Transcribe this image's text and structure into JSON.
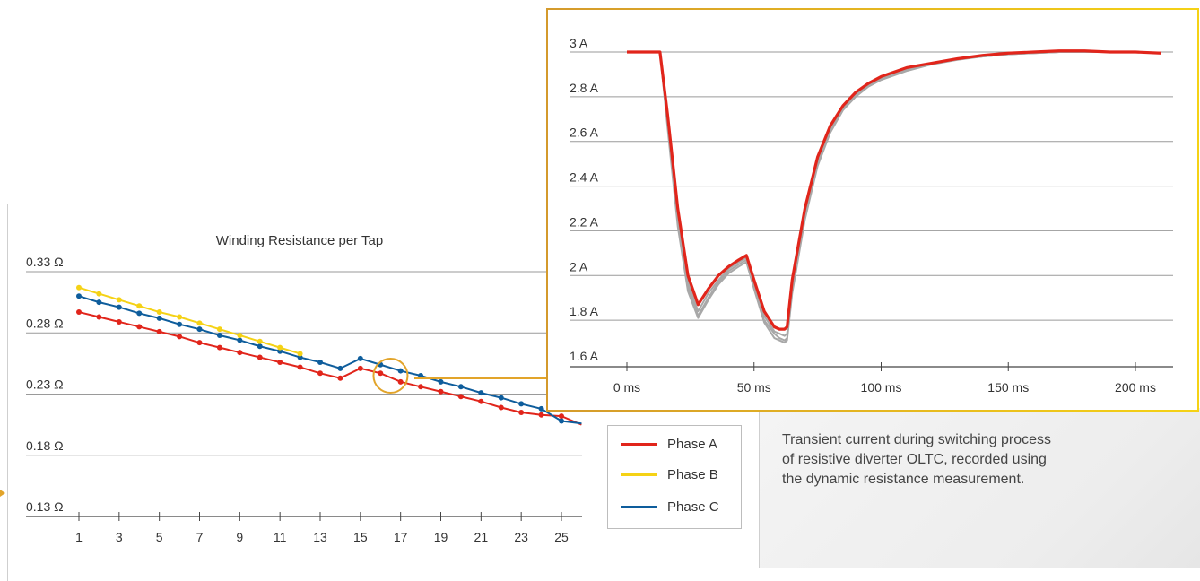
{
  "caption": "Transient current during switching process of resistive diverter OLTC, recorded using the dynamic resistance measurement.",
  "colors": {
    "phase_a": "#e1251b",
    "phase_b": "#f5d215",
    "phase_c": "#0e5d9c",
    "highlight": "#e2a42a",
    "grid": "#9a9a9a",
    "gray_traces": "#a8a8a8"
  },
  "chart_data": [
    {
      "type": "line",
      "title": "Winding Resistance per Tap",
      "xlabel": "",
      "ylabel": "",
      "x": [
        1,
        2,
        3,
        4,
        5,
        6,
        7,
        8,
        9,
        10,
        11,
        12,
        13,
        14,
        15,
        16,
        17,
        18,
        19,
        20,
        21,
        22,
        23,
        24,
        25,
        26
      ],
      "xticks": [
        "1",
        "3",
        "5",
        "7",
        "9",
        "11",
        "13",
        "15",
        "17",
        "19",
        "21",
        "23",
        "25"
      ],
      "yticks": [
        "0.33 Ω",
        "0.28 Ω",
        "0.23 Ω",
        "0.18 Ω",
        "0.13 Ω"
      ],
      "ytick_values": [
        0.33,
        0.28,
        0.23,
        0.18,
        0.13
      ],
      "ylim": [
        0.12,
        0.335
      ],
      "xlim": [
        0,
        26
      ],
      "grid": true,
      "highlight": {
        "x": 16.5,
        "y": 0.245
      },
      "series": [
        {
          "name": "Phase A",
          "color": "#e1251b",
          "x": [
            1,
            2,
            3,
            4,
            5,
            6,
            7,
            8,
            9,
            10,
            11,
            12,
            13,
            14,
            15,
            16,
            17,
            18,
            19,
            20,
            21,
            22,
            23,
            24,
            25,
            26
          ],
          "values": [
            0.297,
            0.293,
            0.289,
            0.285,
            0.281,
            0.277,
            0.272,
            0.268,
            0.264,
            0.26,
            0.256,
            0.252,
            0.247,
            0.243,
            0.251,
            0.247,
            0.24,
            0.236,
            0.232,
            0.228,
            0.224,
            0.219,
            0.215,
            0.213,
            0.212,
            0.205
          ]
        },
        {
          "name": "Phase B",
          "color": "#f5d215",
          "x": [
            1,
            2,
            3,
            4,
            5,
            6,
            7,
            8,
            9,
            10,
            11,
            12
          ],
          "values": [
            0.317,
            0.312,
            0.307,
            0.302,
            0.297,
            0.293,
            0.288,
            0.283,
            0.278,
            0.273,
            0.268,
            0.263
          ]
        },
        {
          "name": "Phase C",
          "color": "#0e5d9c",
          "x": [
            1,
            2,
            3,
            4,
            5,
            6,
            7,
            8,
            9,
            10,
            11,
            12,
            13,
            14,
            15,
            16,
            17,
            18,
            19,
            20,
            21,
            22,
            23,
            24,
            25,
            26
          ],
          "values": [
            0.31,
            0.305,
            0.301,
            0.296,
            0.292,
            0.287,
            0.283,
            0.278,
            0.274,
            0.269,
            0.265,
            0.26,
            0.256,
            0.251,
            0.259,
            0.254,
            0.249,
            0.245,
            0.24,
            0.236,
            0.231,
            0.227,
            0.222,
            0.218,
            0.208,
            0.206
          ]
        }
      ],
      "legend": "bottom-right, outside plot"
    },
    {
      "type": "line",
      "title": "",
      "xlabel": "",
      "ylabel": "",
      "xticks": [
        "0 ms",
        "50 ms",
        "100 ms",
        "150 ms",
        "200 ms"
      ],
      "xtick_values": [
        0,
        50,
        100,
        150,
        200
      ],
      "yticks": [
        "3 A",
        "2.8 A",
        "2.6 A",
        "2.4 A",
        "2.2 A",
        "2 A",
        "1.8 A",
        "1.6 A"
      ],
      "ytick_values": [
        3.0,
        2.8,
        2.6,
        2.4,
        2.2,
        2.0,
        1.8,
        1.6
      ],
      "xlim": [
        -10,
        218
      ],
      "ylim": [
        1.59,
        3.02
      ],
      "grid": true,
      "series": [
        {
          "name": "",
          "color": "#e1251b",
          "x": [
            0,
            5,
            10,
            13,
            16,
            20,
            24,
            28,
            32,
            36,
            40,
            44,
            47,
            50,
            54,
            58,
            60,
            62,
            63,
            65,
            70,
            75,
            80,
            85,
            90,
            95,
            100,
            110,
            120,
            130,
            140,
            150,
            160,
            170,
            180,
            190,
            200,
            210
          ],
          "values": [
            3.0,
            3.0,
            3.0,
            3.0,
            2.72,
            2.3,
            2.0,
            1.87,
            1.94,
            2.0,
            2.04,
            2.07,
            2.09,
            1.98,
            1.84,
            1.77,
            1.76,
            1.76,
            1.77,
            1.98,
            2.3,
            2.53,
            2.67,
            2.76,
            2.82,
            2.86,
            2.89,
            2.93,
            2.95,
            2.97,
            2.985,
            2.995,
            3.0,
            3.005,
            3.005,
            3.0,
            3.0,
            2.995
          ]
        },
        {
          "name": "",
          "color": "#a8a8a8",
          "x": [
            0,
            5,
            10,
            13,
            16,
            20,
            24,
            28,
            32,
            36,
            40,
            44,
            47,
            50,
            54,
            58,
            60,
            62,
            63,
            65,
            70,
            75,
            80,
            85,
            90,
            95,
            100,
            110,
            120,
            130,
            140,
            150,
            160,
            170,
            180,
            190,
            200,
            210
          ],
          "values": [
            3.0,
            3.0,
            3.0,
            3.0,
            2.68,
            2.24,
            1.95,
            1.82,
            1.9,
            1.97,
            2.02,
            2.05,
            2.07,
            1.95,
            1.8,
            1.74,
            1.72,
            1.71,
            1.72,
            1.93,
            2.26,
            2.5,
            2.65,
            2.75,
            2.81,
            2.85,
            2.88,
            2.92,
            2.95,
            2.97,
            2.98,
            2.99,
            2.995,
            3.0,
            3.0,
            3.0,
            3.0,
            2.995
          ]
        },
        {
          "name": "",
          "color": "#a8a8a8",
          "x": [
            0,
            5,
            10,
            13,
            16,
            20,
            24,
            28,
            32,
            36,
            40,
            44,
            47,
            50,
            54,
            58,
            60,
            62,
            63,
            65,
            70,
            75,
            80,
            85,
            90,
            95,
            100,
            110,
            120,
            130,
            140,
            150,
            160,
            170,
            180,
            190,
            200,
            210
          ],
          "values": [
            3.0,
            3.0,
            3.0,
            3.0,
            2.7,
            2.27,
            1.97,
            1.84,
            1.92,
            1.98,
            2.03,
            2.06,
            2.08,
            1.96,
            1.82,
            1.75,
            1.74,
            1.73,
            1.74,
            1.95,
            2.28,
            2.51,
            2.66,
            2.755,
            2.815,
            2.855,
            2.885,
            2.925,
            2.95,
            2.97,
            2.98,
            2.99,
            2.995,
            3.0,
            3.0,
            3.0,
            3.0,
            2.995
          ]
        },
        {
          "name": "",
          "color": "#a8a8a8",
          "x": [
            0,
            5,
            10,
            13,
            16,
            20,
            24,
            28,
            32,
            36,
            40,
            44,
            47,
            50,
            54,
            58,
            60,
            62,
            63,
            65,
            70,
            75,
            80,
            85,
            90,
            95,
            100,
            110,
            120,
            130,
            140,
            150,
            160,
            170,
            180,
            190,
            200,
            210
          ],
          "values": [
            3.0,
            3.0,
            3.0,
            3.0,
            2.66,
            2.22,
            1.93,
            1.81,
            1.89,
            1.96,
            2.01,
            2.04,
            2.06,
            1.94,
            1.79,
            1.72,
            1.71,
            1.7,
            1.71,
            1.92,
            2.25,
            2.49,
            2.64,
            2.74,
            2.8,
            2.845,
            2.875,
            2.915,
            2.945,
            2.965,
            2.98,
            2.99,
            2.995,
            3.0,
            3.0,
            3.0,
            3.0,
            2.995
          ]
        }
      ]
    }
  ],
  "legend": {
    "items": [
      {
        "label": "Phase A",
        "color": "#e1251b"
      },
      {
        "label": "Phase B",
        "color": "#f5d215"
      },
      {
        "label": "Phase C",
        "color": "#0e5d9c"
      }
    ]
  }
}
